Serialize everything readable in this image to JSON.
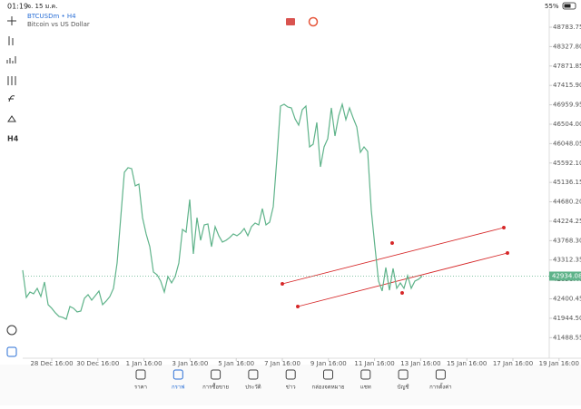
{
  "status": {
    "time": "01:19",
    "date": "จ. 15 ม.ค.",
    "battery": "55%"
  },
  "toolbar": {
    "timeframe": "H4"
  },
  "chart_data": {
    "type": "line",
    "title": "BTCUSDm • H4",
    "subtitle": "Bitcoin vs US Dollar",
    "color": "#5fb38a",
    "values": [
      43073,
      42434,
      42561,
      42519,
      42647,
      42455,
      42796,
      42263,
      42178,
      42071,
      41986,
      41965,
      41922,
      42221,
      42178,
      42093,
      42114,
      42412,
      42498,
      42370,
      42476,
      42583,
      42263,
      42348,
      42455,
      42647,
      43243,
      44309,
      45374,
      45481,
      45460,
      45055,
      45097,
      44309,
      43925,
      43627,
      43030,
      42966,
      42817,
      42561,
      42924,
      42775,
      42924,
      43243,
      44032,
      43968,
      44735,
      43456,
      44309,
      43776,
      44138,
      44160,
      43627,
      44096,
      43883,
      43734,
      43776,
      43840,
      43925,
      43883,
      43947,
      44053,
      43883,
      44096,
      44181,
      44138,
      44522,
      44138,
      44202,
      44565,
      45694,
      46930,
      46973,
      46909,
      46887,
      46632,
      46483,
      46845,
      46930,
      45971,
      46035,
      46546,
      45502,
      45971,
      46163,
      46887,
      46227,
      46696,
      46973,
      46610,
      46887,
      46653,
      46440,
      45843,
      45971,
      45865,
      44479,
      43627,
      42817,
      42583,
      43137,
      42604,
      43116,
      42647,
      42775,
      42647,
      42945,
      42647,
      42817,
      42860,
      42934
    ],
    "xlim": [
      0,
      148
    ],
    "xticks": [
      {
        "value": 8,
        "label": "28 Dec 16:00"
      },
      {
        "value": 20.7,
        "label": "30 Dec 16:00"
      },
      {
        "value": 33.4,
        "label": "1 Jan 16:00"
      },
      {
        "value": 46.1,
        "label": "3 Jan 16:00"
      },
      {
        "value": 58.8,
        "label": "5 Jan 16:00"
      },
      {
        "value": 71.5,
        "label": "7 Jan 16:00"
      },
      {
        "value": 84.2,
        "label": "9 Jan 16:00"
      },
      {
        "value": 96.9,
        "label": "11 Jan 16:00"
      },
      {
        "value": 109.6,
        "label": "13 Jan 16:00"
      },
      {
        "value": 122.3,
        "label": "15 Jan 16:00"
      },
      {
        "value": 135,
        "label": "17 Jan 16:00"
      },
      {
        "value": 147.7,
        "label": "19 Jan 16:00"
      }
    ],
    "ylim": [
      41005,
      49210
    ],
    "yticks": [
      {
        "value": 48783.75,
        "label": "48783.75"
      },
      {
        "value": 48327.8,
        "label": "48327.80"
      },
      {
        "value": 47871.85,
        "label": "47871.85"
      },
      {
        "value": 47415.9,
        "label": "47415.90"
      },
      {
        "value": 46959.95,
        "label": "46959.95"
      },
      {
        "value": 46504,
        "label": "46504.00"
      },
      {
        "value": 46048.05,
        "label": "46048.05"
      },
      {
        "value": 45592.1,
        "label": "45592.10"
      },
      {
        "value": 45136.15,
        "label": "45136.15"
      },
      {
        "value": 44680.2,
        "label": "44680.20"
      },
      {
        "value": 44224.25,
        "label": "44224.25"
      },
      {
        "value": 43768.3,
        "label": "43768.30"
      },
      {
        "value": 43312.35,
        "label": "43312.35"
      },
      {
        "value": 42856.4,
        "label": "42856.40"
      },
      {
        "value": 42400.45,
        "label": "42400.45"
      },
      {
        "value": 41944.5,
        "label": "41944.50"
      },
      {
        "value": 41488.55,
        "label": "41488.55"
      }
    ],
    "current_price": {
      "value": 42934.08,
      "label": "42934.08"
    }
  },
  "nav": [
    "ราคา",
    "กราฟ",
    "การซื้อขาย",
    "ประวัติ",
    "ข่าว",
    "กล่องจดหมาย",
    "แชท",
    "บัญชี",
    "การตั้งค่า"
  ]
}
